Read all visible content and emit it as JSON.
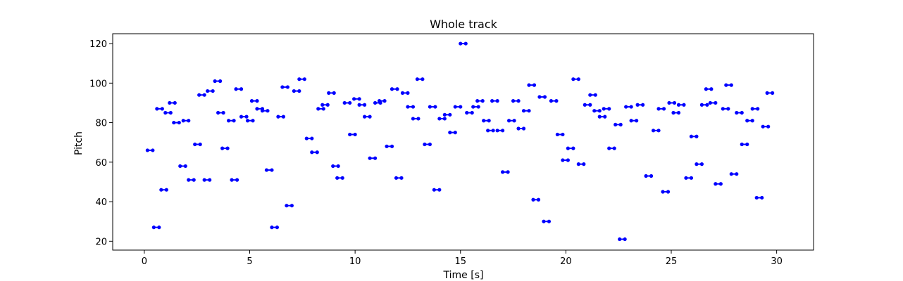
{
  "chart_data": {
    "type": "line",
    "title": "Whole track",
    "xlabel": "Time [s]",
    "ylabel": "Pitch",
    "xlim": [
      -1.5,
      31.75
    ],
    "ylim": [
      15.5,
      125.0
    ],
    "xticks": [
      0,
      5,
      10,
      15,
      20,
      25,
      30
    ],
    "yticks": [
      20,
      40,
      60,
      80,
      100,
      120
    ],
    "grid": false,
    "legend": "none",
    "color": "#0000ff",
    "note_duration": 0.25,
    "notes": [
      {
        "t": 0.15,
        "p": 66
      },
      {
        "t": 0.45,
        "p": 27
      },
      {
        "t": 0.6,
        "p": 87
      },
      {
        "t": 0.8,
        "p": 46
      },
      {
        "t": 1.0,
        "p": 85
      },
      {
        "t": 1.2,
        "p": 90
      },
      {
        "t": 1.4,
        "p": 80
      },
      {
        "t": 1.7,
        "p": 58
      },
      {
        "t": 1.85,
        "p": 81
      },
      {
        "t": 2.1,
        "p": 51
      },
      {
        "t": 2.4,
        "p": 69
      },
      {
        "t": 2.6,
        "p": 94
      },
      {
        "t": 2.85,
        "p": 51
      },
      {
        "t": 3.0,
        "p": 96
      },
      {
        "t": 3.35,
        "p": 101
      },
      {
        "t": 3.5,
        "p": 85
      },
      {
        "t": 3.7,
        "p": 67
      },
      {
        "t": 4.0,
        "p": 81
      },
      {
        "t": 4.15,
        "p": 51
      },
      {
        "t": 4.35,
        "p": 97
      },
      {
        "t": 4.6,
        "p": 83
      },
      {
        "t": 4.9,
        "p": 81
      },
      {
        "t": 5.1,
        "p": 91
      },
      {
        "t": 5.35,
        "p": 87
      },
      {
        "t": 5.6,
        "p": 86
      },
      {
        "t": 5.8,
        "p": 56
      },
      {
        "t": 6.05,
        "p": 27
      },
      {
        "t": 6.35,
        "p": 83
      },
      {
        "t": 6.55,
        "p": 98
      },
      {
        "t": 6.75,
        "p": 38
      },
      {
        "t": 7.1,
        "p": 96
      },
      {
        "t": 7.35,
        "p": 102
      },
      {
        "t": 7.7,
        "p": 72
      },
      {
        "t": 7.95,
        "p": 65
      },
      {
        "t": 8.25,
        "p": 87
      },
      {
        "t": 8.45,
        "p": 89
      },
      {
        "t": 8.75,
        "p": 95
      },
      {
        "t": 8.95,
        "p": 58
      },
      {
        "t": 9.15,
        "p": 52
      },
      {
        "t": 9.5,
        "p": 90
      },
      {
        "t": 9.75,
        "p": 74
      },
      {
        "t": 9.95,
        "p": 92
      },
      {
        "t": 10.2,
        "p": 89
      },
      {
        "t": 10.45,
        "p": 83
      },
      {
        "t": 10.7,
        "p": 62
      },
      {
        "t": 10.95,
        "p": 90
      },
      {
        "t": 11.15,
        "p": 91
      },
      {
        "t": 11.5,
        "p": 68
      },
      {
        "t": 11.75,
        "p": 97
      },
      {
        "t": 11.95,
        "p": 52
      },
      {
        "t": 12.25,
        "p": 95
      },
      {
        "t": 12.5,
        "p": 88
      },
      {
        "t": 12.75,
        "p": 82
      },
      {
        "t": 12.95,
        "p": 102
      },
      {
        "t": 13.3,
        "p": 69
      },
      {
        "t": 13.55,
        "p": 88
      },
      {
        "t": 13.75,
        "p": 46
      },
      {
        "t": 14.0,
        "p": 82
      },
      {
        "t": 14.25,
        "p": 84
      },
      {
        "t": 14.5,
        "p": 75
      },
      {
        "t": 14.75,
        "p": 88
      },
      {
        "t": 15.0,
        "p": 120
      },
      {
        "t": 15.3,
        "p": 85
      },
      {
        "t": 15.6,
        "p": 88
      },
      {
        "t": 15.8,
        "p": 91
      },
      {
        "t": 16.1,
        "p": 81
      },
      {
        "t": 16.3,
        "p": 76
      },
      {
        "t": 16.5,
        "p": 91
      },
      {
        "t": 16.75,
        "p": 76
      },
      {
        "t": 17.0,
        "p": 55
      },
      {
        "t": 17.3,
        "p": 81
      },
      {
        "t": 17.5,
        "p": 91
      },
      {
        "t": 17.75,
        "p": 77
      },
      {
        "t": 18.0,
        "p": 86
      },
      {
        "t": 18.25,
        "p": 99
      },
      {
        "t": 18.45,
        "p": 41
      },
      {
        "t": 18.75,
        "p": 93
      },
      {
        "t": 18.95,
        "p": 30
      },
      {
        "t": 19.3,
        "p": 91
      },
      {
        "t": 19.6,
        "p": 74
      },
      {
        "t": 19.85,
        "p": 61
      },
      {
        "t": 20.1,
        "p": 67
      },
      {
        "t": 20.35,
        "p": 102
      },
      {
        "t": 20.6,
        "p": 59
      },
      {
        "t": 20.9,
        "p": 89
      },
      {
        "t": 21.15,
        "p": 94
      },
      {
        "t": 21.35,
        "p": 86
      },
      {
        "t": 21.6,
        "p": 83
      },
      {
        "t": 21.8,
        "p": 87
      },
      {
        "t": 22.05,
        "p": 67
      },
      {
        "t": 22.35,
        "p": 79
      },
      {
        "t": 22.55,
        "p": 21
      },
      {
        "t": 22.85,
        "p": 88
      },
      {
        "t": 23.1,
        "p": 81
      },
      {
        "t": 23.4,
        "p": 89
      },
      {
        "t": 23.8,
        "p": 53
      },
      {
        "t": 24.15,
        "p": 76
      },
      {
        "t": 24.4,
        "p": 87
      },
      {
        "t": 24.6,
        "p": 45
      },
      {
        "t": 24.9,
        "p": 90
      },
      {
        "t": 25.1,
        "p": 85
      },
      {
        "t": 25.35,
        "p": 89
      },
      {
        "t": 25.7,
        "p": 52
      },
      {
        "t": 25.95,
        "p": 73
      },
      {
        "t": 26.2,
        "p": 59
      },
      {
        "t": 26.45,
        "p": 89
      },
      {
        "t": 26.65,
        "p": 97
      },
      {
        "t": 26.85,
        "p": 90
      },
      {
        "t": 27.1,
        "p": 49
      },
      {
        "t": 27.45,
        "p": 87
      },
      {
        "t": 27.6,
        "p": 99
      },
      {
        "t": 27.85,
        "p": 54
      },
      {
        "t": 28.1,
        "p": 85
      },
      {
        "t": 28.35,
        "p": 69
      },
      {
        "t": 28.6,
        "p": 81
      },
      {
        "t": 28.85,
        "p": 87
      },
      {
        "t": 29.05,
        "p": 42
      },
      {
        "t": 29.35,
        "p": 78
      },
      {
        "t": 29.55,
        "p": 95
      }
    ]
  }
}
